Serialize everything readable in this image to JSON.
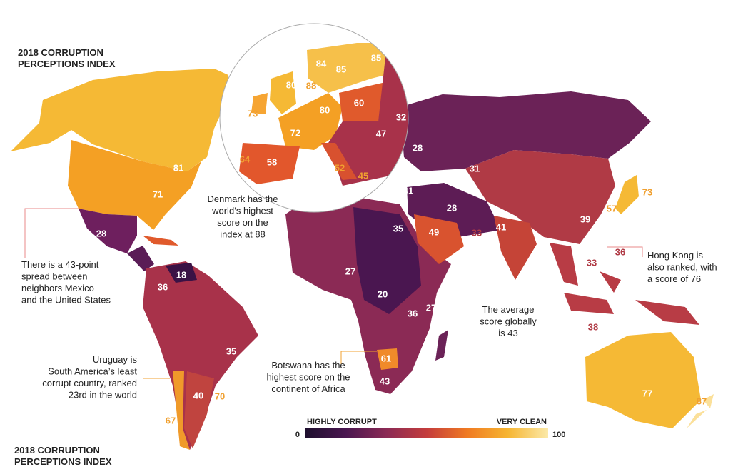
{
  "title_lines": [
    "2018 CORRUPTION",
    "PERCEPTIONS INDEX"
  ],
  "score_labels": [
    84,
    85,
    85,
    80,
    88,
    73,
    80,
    60,
    32,
    72,
    47,
    64,
    58,
    52,
    45,
    28,
    31,
    41,
    73,
    57,
    39,
    28,
    35,
    49,
    33,
    41,
    36,
    33,
    38,
    81,
    71,
    28,
    18,
    36,
    27,
    20,
    36,
    27,
    35,
    61,
    43,
    40,
    70,
    67,
    77,
    87
  ],
  "annotations": [
    {
      "lines": [
        "Denmark has the",
        "world’s highest",
        "score on the",
        "index at 88"
      ]
    },
    {
      "lines": [
        "There is a 43-point",
        "spread between",
        "neighbors Mexico",
        "and the United States"
      ]
    },
    {
      "lines": [
        "Hong Kong is",
        "also ranked, with",
        "a score of 76"
      ]
    },
    {
      "lines": [
        "The average",
        "score globally",
        "is 43"
      ]
    },
    {
      "lines": [
        "Uruguay is",
        "South America’s least",
        "corrupt country, ranked",
        "23rd in the world"
      ]
    },
    {
      "lines": [
        "Botswana has the",
        "highest score on the",
        "continent of Africa"
      ]
    }
  ],
  "legend": {
    "low_label": "HIGHLY CORRUPT",
    "high_label": "VERY CLEAN",
    "min": 0,
    "max": 100,
    "colors": [
      "#1e0f2e",
      "#4a1650",
      "#8b2a55",
      "#c43c3c",
      "#f07a22",
      "#f6b531",
      "#fbe9a8"
    ]
  }
}
